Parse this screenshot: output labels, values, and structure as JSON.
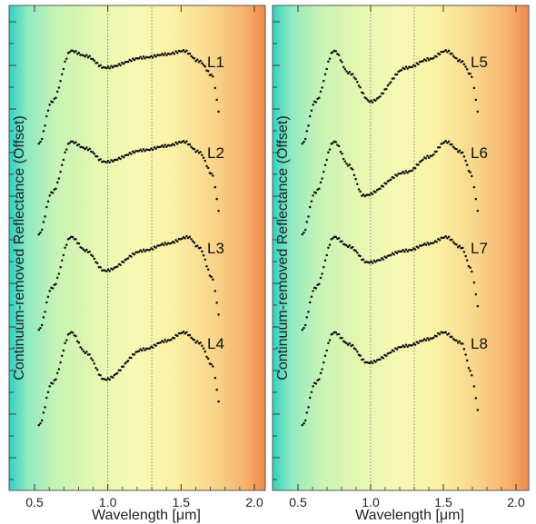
{
  "chart_data": [
    {
      "type": "scatter",
      "ylabel": "Continuum-removed Reflectance (Offset)",
      "xlabel": "Wavelength [μm]",
      "xlim": [
        0.5,
        2.0
      ],
      "x_ticks": [
        "0.5",
        "1.0",
        "1.5",
        "2.0"
      ],
      "reference_lines_x": [
        1.0,
        1.3
      ],
      "background": "spectral gradient (blue-green to orange)",
      "series": [
        {
          "name": "L1",
          "peak1": [
            0.75,
            1.0
          ],
          "min": [
            0.98,
            0.9
          ],
          "shoulder": [
            1.25,
            0.96
          ],
          "peak2": [
            1.52,
            1.0
          ],
          "end": [
            1.72,
            0.85
          ]
        },
        {
          "name": "L2",
          "peak1": [
            0.75,
            1.0
          ],
          "min": [
            0.98,
            0.88
          ],
          "shoulder": [
            1.25,
            0.95
          ],
          "peak2": [
            1.52,
            1.0
          ],
          "end": [
            1.72,
            0.8
          ]
        },
        {
          "name": "L3",
          "peak1": [
            0.75,
            1.0
          ],
          "min": [
            0.98,
            0.8
          ],
          "shoulder": [
            1.25,
            0.92
          ],
          "peak2": [
            1.55,
            1.0
          ],
          "end": [
            1.72,
            0.75
          ]
        },
        {
          "name": "L4",
          "peak1": [
            0.75,
            1.0
          ],
          "min": [
            0.98,
            0.72
          ],
          "shoulder": [
            1.25,
            0.9
          ],
          "peak2": [
            1.52,
            1.0
          ],
          "end": [
            1.72,
            0.8
          ]
        }
      ]
    },
    {
      "type": "scatter",
      "ylabel": "Continuum-removed Reflectance (Offset)",
      "xlabel": "Wavelength [μm]",
      "xlim": [
        0.5,
        2.0
      ],
      "x_ticks": [
        "0.5",
        "1.0",
        "1.5",
        "2.0"
      ],
      "reference_lines_x": [
        1.0,
        1.3
      ],
      "background": "spectral gradient (blue-green to orange)",
      "series": [
        {
          "name": "L5",
          "peak1": [
            0.75,
            1.0
          ],
          "min": [
            1.0,
            0.7
          ],
          "shoulder": [
            1.25,
            0.9
          ],
          "peak2": [
            1.52,
            1.0
          ],
          "end": [
            1.7,
            0.85
          ]
        },
        {
          "name": "L6",
          "peak1": [
            0.75,
            1.0
          ],
          "min": [
            0.95,
            0.68
          ],
          "shoulder": [
            1.25,
            0.82
          ],
          "peak2": [
            1.52,
            1.0
          ],
          "end": [
            1.7,
            0.8
          ]
        },
        {
          "name": "L7",
          "peak1": [
            0.75,
            1.0
          ],
          "min": [
            0.98,
            0.85
          ],
          "shoulder": [
            1.25,
            0.92
          ],
          "peak2": [
            1.52,
            1.0
          ],
          "end": [
            1.7,
            0.8
          ]
        },
        {
          "name": "L8",
          "peak1": [
            0.75,
            1.0
          ],
          "min": [
            0.98,
            0.82
          ],
          "shoulder": [
            1.25,
            0.92
          ],
          "peak2": [
            1.5,
            1.0
          ],
          "end": [
            1.7,
            0.75
          ]
        }
      ]
    }
  ]
}
